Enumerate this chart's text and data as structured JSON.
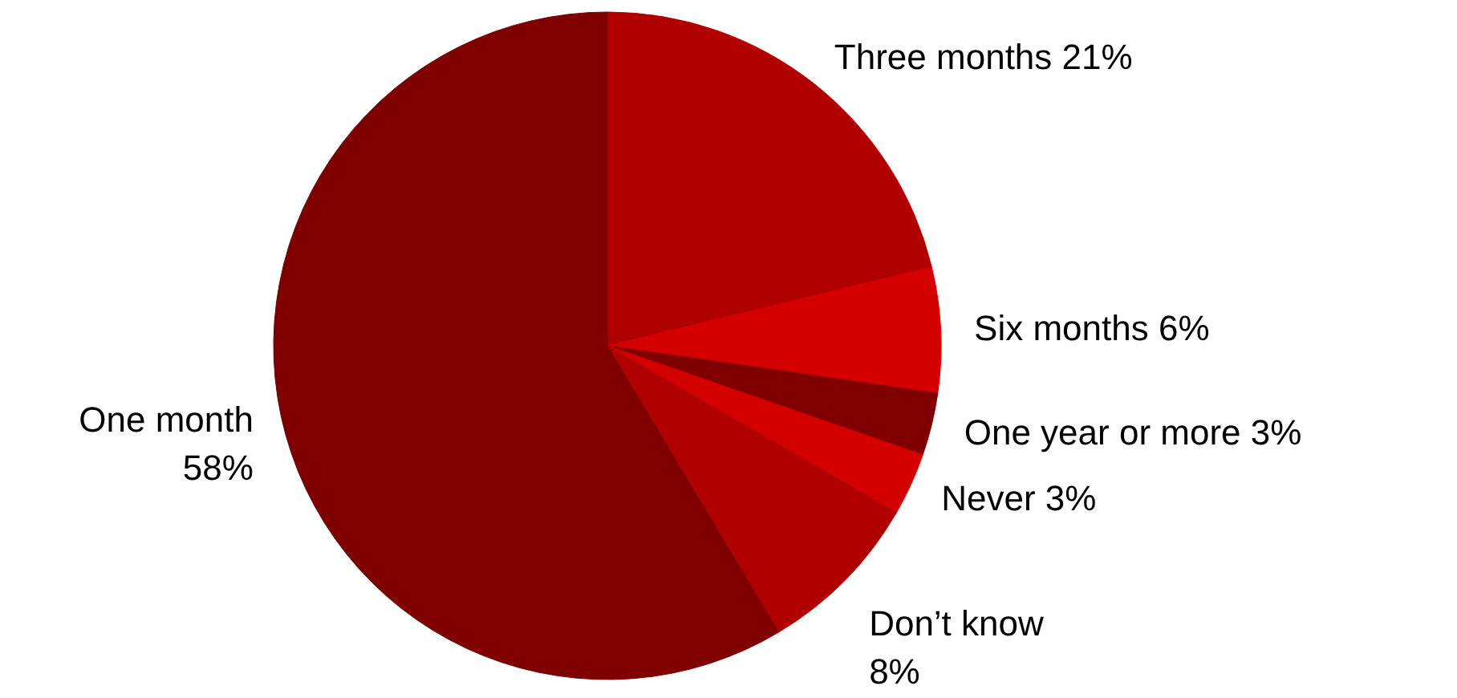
{
  "chart_data": {
    "type": "pie",
    "categories": [
      "Three months",
      "Six months",
      "One year or more",
      "Never",
      "Don’t know",
      "One month"
    ],
    "values": [
      21,
      6,
      3,
      3,
      8,
      58
    ],
    "value_labels": [
      "21%",
      "6%",
      "3%",
      "3%",
      "8%",
      "58%"
    ],
    "colors": [
      "#b00000",
      "#d40000",
      "#800000",
      "#d40000",
      "#b00000",
      "#800000"
    ]
  }
}
